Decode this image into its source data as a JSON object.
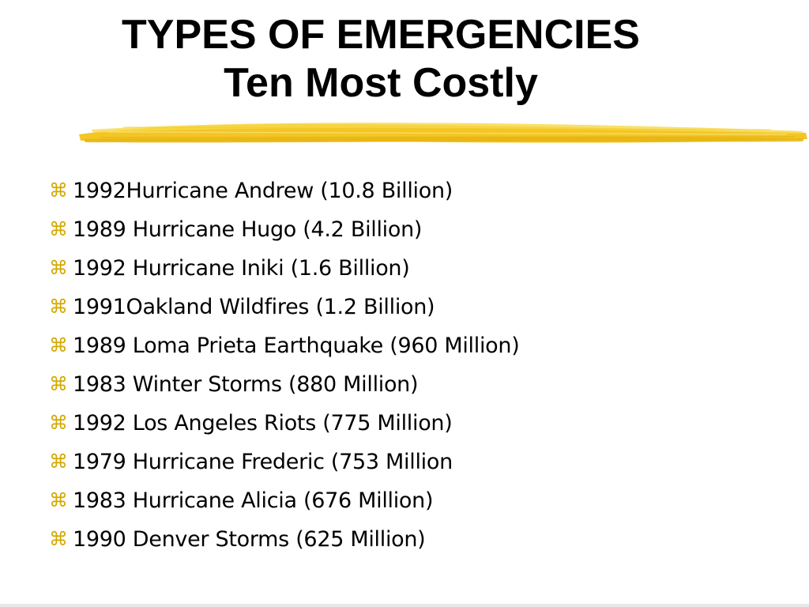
{
  "title": {
    "line1": "TYPES OF EMERGENCIES",
    "line2": "Ten Most Costly"
  },
  "colors": {
    "accent": "#f2c318",
    "bullet": "#d4a800",
    "text": "#000000"
  },
  "bullet_icon": "command-key-icon",
  "bullet_glyph": "⌘",
  "items": [
    "1992Hurricane Andrew (10.8 Billion)",
    "1989 Hurricane Hugo (4.2 Billion)",
    "1992 Hurricane Iniki (1.6 Billion)",
    "1991Oakland Wildfires (1.2 Billion)",
    "1989 Loma Prieta Earthquake (960 Million)",
    "1983 Winter Storms (880 Million)",
    "1992 Los Angeles Riots (775 Million)",
    "1979 Hurricane Frederic (753 Million",
    "1983 Hurricane Alicia (676 Million)",
    "1990 Denver Storms (625 Million)"
  ]
}
